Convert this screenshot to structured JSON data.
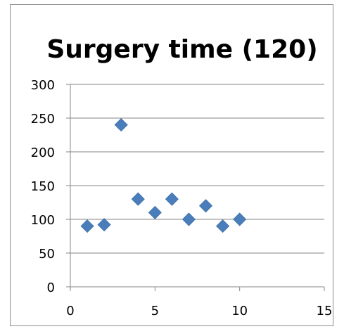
{
  "chart_data": {
    "type": "scatter",
    "title": "Surgery time (120)",
    "xlabel": "",
    "ylabel": "",
    "xlim": [
      0,
      15
    ],
    "ylim": [
      0,
      300
    ],
    "xticks": [
      0,
      5,
      10,
      15
    ],
    "yticks": [
      0,
      50,
      100,
      150,
      200,
      250,
      300
    ],
    "grid": "horizontal",
    "legend": "none",
    "marker": "diamond",
    "marker_color": "#4a7ebb",
    "series": [
      {
        "x": [
          1,
          2,
          3,
          4,
          5,
          6,
          7,
          8,
          9,
          10
        ],
        "y": [
          90,
          92,
          240,
          130,
          110,
          130,
          100,
          120,
          90,
          100
        ]
      }
    ]
  }
}
